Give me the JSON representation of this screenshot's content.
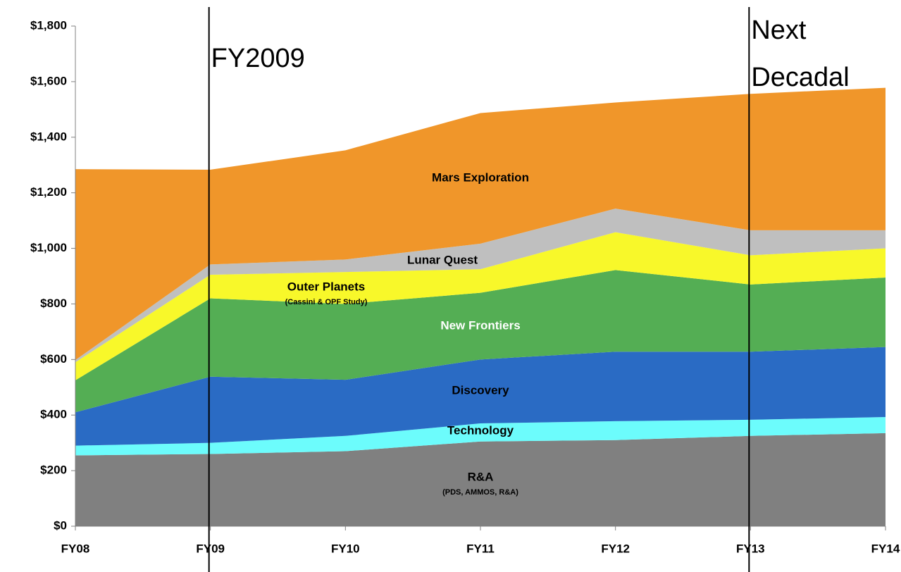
{
  "chart_data": {
    "type": "stacked-area",
    "categories": [
      "FY08",
      "FY09",
      "FY10",
      "FY11",
      "FY12",
      "FY13",
      "FY14"
    ],
    "series": [
      {
        "name": "R&A",
        "sublabel": "(PDS, AMMOS, R&A)",
        "color": "#808080",
        "label_color": "#000000",
        "values": [
          255,
          260,
          270,
          305,
          310,
          325,
          335
        ]
      },
      {
        "name": "Technology",
        "color": "#6cfcfc",
        "label_color": "#000000",
        "values": [
          35,
          40,
          55,
          65,
          68,
          58,
          58
        ]
      },
      {
        "name": "Discovery",
        "color": "#2a6bc4",
        "label_color": "#000000",
        "values": [
          120,
          238,
          202,
          230,
          250,
          245,
          252
        ]
      },
      {
        "name": "New Frontiers",
        "color": "#54ae54",
        "label_color": "#ffffff",
        "values": [
          115,
          282,
          273,
          240,
          294,
          242,
          250
        ]
      },
      {
        "name": "Outer Planets",
        "sublabel": "(Cassini & OPF Study)",
        "color": "#f8f82a",
        "label_color": "#000000",
        "values": [
          65,
          85,
          115,
          85,
          136,
          105,
          105
        ]
      },
      {
        "name": "Lunar Quest",
        "color": "#bfbfbf",
        "label_color": "#000000",
        "values": [
          8,
          37,
          45,
          92,
          85,
          90,
          65
        ]
      },
      {
        "name": "Mars Exploration",
        "color": "#f0962a",
        "label_color": "#000000",
        "values": [
          687,
          341,
          393,
          470,
          382,
          491,
          513
        ]
      }
    ],
    "ylim": [
      0,
      1800
    ],
    "yticks": [
      {
        "value": 0,
        "label": "$0"
      },
      {
        "value": 200,
        "label": "$200"
      },
      {
        "value": 400,
        "label": "$400"
      },
      {
        "value": 600,
        "label": "$600"
      },
      {
        "value": 800,
        "label": "$800"
      },
      {
        "value": 1000,
        "label": "$1,000"
      },
      {
        "value": 1200,
        "label": "$1,200"
      },
      {
        "value": 1400,
        "label": "$1,400"
      },
      {
        "value": 1600,
        "label": "$1,600"
      },
      {
        "value": 1800,
        "label": "$1,800"
      }
    ],
    "annotations": [
      {
        "x": "FY09",
        "text": [
          "FY2009"
        ]
      },
      {
        "x": "FY13",
        "text": [
          "Next",
          "Decadal"
        ]
      }
    ]
  }
}
